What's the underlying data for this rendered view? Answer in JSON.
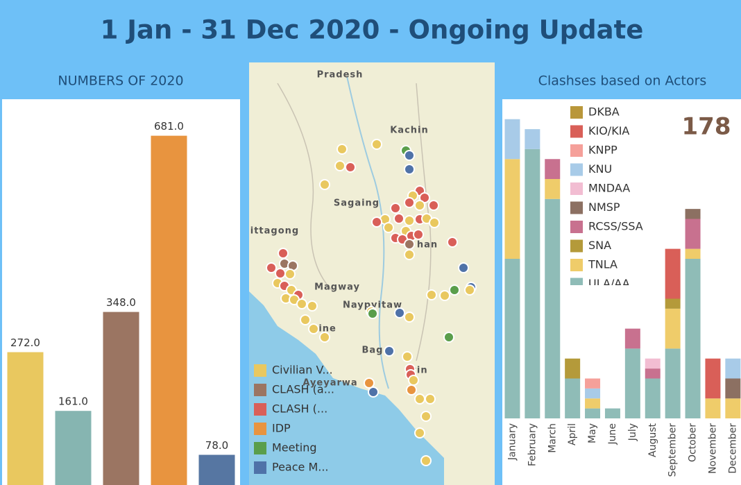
{
  "title": "1 Jan - 31 Dec 2020 - Ongoing Update",
  "chart_data": [
    {
      "type": "bar",
      "title": "NUMBERS OF 2020",
      "categories": [
        null,
        null,
        null,
        null,
        null
      ],
      "values": [
        272,
        161,
        348,
        681,
        78
      ],
      "value_labels": [
        "272.0",
        "161.0",
        "348.0",
        "681.0",
        "78.0"
      ],
      "colors": [
        "#e9c85f",
        "#86b5b1",
        "#9b7562",
        "#e8943f",
        "#5676a2"
      ],
      "ylim": [
        0,
        750
      ]
    },
    {
      "type": "stacked_bar",
      "title": "Clashses based on Actors",
      "annotation": "178",
      "categories": [
        "January",
        "February",
        "March",
        "April",
        "May",
        "June",
        "July",
        "August",
        "September",
        "October",
        "November",
        "December"
      ],
      "ylim": [
        0,
        32
      ],
      "series": [
        {
          "name": "DKBA",
          "color": "#b9973a",
          "values": [
            0,
            0,
            0,
            0,
            0,
            0,
            0,
            0,
            0,
            0,
            0,
            0
          ]
        },
        {
          "name": "KIO/KIA",
          "color": "#d95f58",
          "values": [
            0,
            0,
            0,
            0,
            0,
            0,
            0,
            0,
            5,
            0,
            4,
            0
          ]
        },
        {
          "name": "KNPP",
          "color": "#f5a09a",
          "values": [
            0,
            0,
            0,
            0,
            1,
            0,
            0,
            0,
            0,
            0,
            0,
            0
          ]
        },
        {
          "name": "KNU",
          "color": "#a8cbe8",
          "values": [
            4,
            2,
            0,
            0,
            1,
            0,
            0,
            0,
            0,
            0,
            0,
            2
          ]
        },
        {
          "name": "MNDAA",
          "color": "#f2bdd2",
          "values": [
            0,
            0,
            0,
            0,
            0,
            0,
            0,
            1,
            0,
            0,
            0,
            0
          ]
        },
        {
          "name": "NMSP",
          "color": "#8c7062",
          "values": [
            0,
            0,
            0,
            0,
            0,
            0,
            0,
            0,
            0,
            1,
            0,
            2
          ]
        },
        {
          "name": "RCSS/SSA",
          "color": "#c8718f",
          "values": [
            0,
            0,
            2,
            0,
            0,
            0,
            2,
            1,
            0,
            3,
            0,
            0
          ]
        },
        {
          "name": "SNA",
          "color": "#b49a3a",
          "values": [
            0,
            0,
            0,
            2,
            0,
            0,
            0,
            0,
            1,
            0,
            0,
            0
          ]
        },
        {
          "name": "TNLA",
          "color": "#efcc6a",
          "values": [
            10,
            0,
            2,
            0,
            1,
            0,
            0,
            0,
            4,
            1,
            2,
            2
          ]
        },
        {
          "name": "ULA/AA",
          "color": "#8fbcb7",
          "values": [
            16,
            27,
            22,
            4,
            1,
            1,
            7,
            4,
            7,
            16,
            0,
            0
          ]
        }
      ]
    }
  ],
  "map": {
    "places": [
      "Pradesh",
      "Kachin",
      "Sagaing",
      "ittagong",
      "han",
      "Magway",
      "Naypyitaw",
      "hine",
      "Bag",
      "Ayeyarwa",
      "yin"
    ],
    "legend": [
      {
        "name": "Civilian V...",
        "color": "#e9c85f"
      },
      {
        "name": "CLASH (a...",
        "color": "#9b7562"
      },
      {
        "name": "CLASH (...",
        "color": "#d95f58"
      },
      {
        "name": "IDP",
        "color": "#e8943f"
      },
      {
        "name": "Meeting",
        "color": "#5a9e4b"
      },
      {
        "name": "Peace M...",
        "color": "#4f72a8"
      }
    ]
  }
}
